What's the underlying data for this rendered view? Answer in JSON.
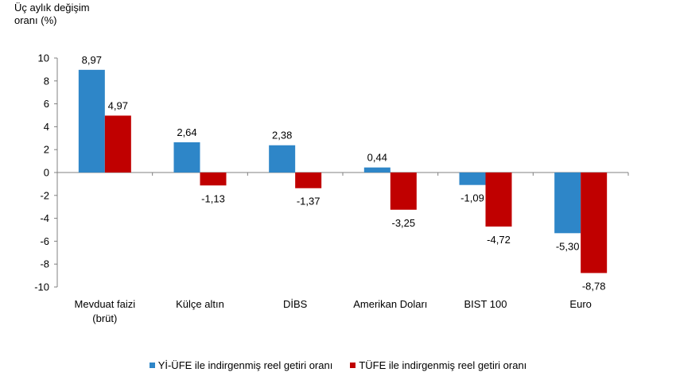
{
  "chart_data": {
    "type": "bar",
    "ylabel_line1": "Üç aylık değişim",
    "ylabel_line2": "oranı (%)",
    "ylim": [
      -10,
      10
    ],
    "yticks": [
      10,
      8,
      6,
      4,
      2,
      0,
      -2,
      -4,
      -6,
      -8,
      -10
    ],
    "categories": [
      [
        "Mevduat faizi",
        "(brüt)"
      ],
      [
        "Külçe altın"
      ],
      [
        "DİBS"
      ],
      [
        "Amerikan Doları"
      ],
      [
        "BIST 100"
      ],
      [
        "Euro"
      ]
    ],
    "series": [
      {
        "name": "Yİ-ÜFE ile indirgenmiş reel getiri oranı",
        "color": "#2e86c8",
        "values": [
          8.97,
          2.64,
          2.38,
          0.44,
          -1.09,
          -5.3
        ],
        "labels": [
          "8,97",
          "2,64",
          "2,38",
          "0,44",
          "-1,09",
          "-5,30"
        ]
      },
      {
        "name": "TÜFE ile indirgenmiş reel getiri oranı",
        "color": "#c00000",
        "values": [
          4.97,
          -1.13,
          -1.37,
          -3.25,
          -4.72,
          -8.78
        ],
        "labels": [
          "4,97",
          "-1,13",
          "-1,37",
          "-3,25",
          "-4,72",
          "-8,78"
        ]
      }
    ],
    "grid": false,
    "legend_position": "bottom"
  }
}
